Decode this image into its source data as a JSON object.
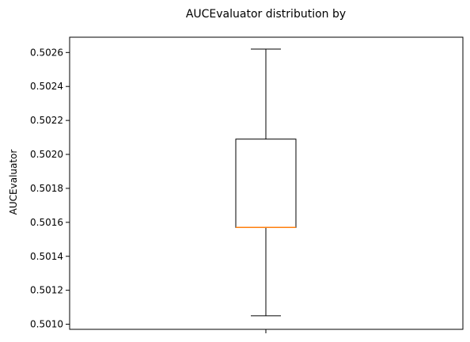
{
  "chart_data": {
    "type": "box",
    "title": "AUCEvaluator distribution by",
    "xlabel": "",
    "ylabel": "AUCEvaluator",
    "ylim": [
      0.50097,
      0.50269
    ],
    "yticks": [
      "0.5010",
      "0.5012",
      "0.5014",
      "0.5016",
      "0.5018",
      "0.5020",
      "0.5022",
      "0.5024",
      "0.5026"
    ],
    "grid": false,
    "box": {
      "whisker_low": 0.50105,
      "q1": 0.50157,
      "median": 0.50157,
      "q3": 0.50209,
      "whisker_high": 0.50262
    },
    "colors": {
      "median": "#ff7f0e",
      "box": "#000000"
    }
  }
}
